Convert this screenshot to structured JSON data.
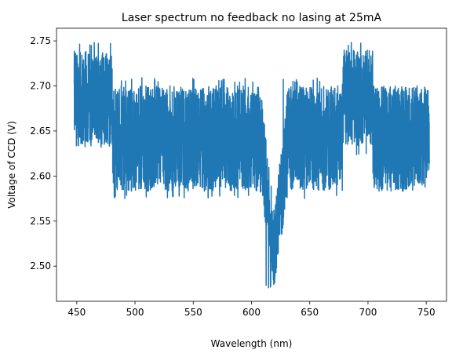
{
  "chart_data": {
    "type": "line",
    "title": "Laser spectrum no feedback no lasing at 25mA",
    "xlabel": "Wavelength (nm)",
    "ylabel": "Voltage of CCD (V)",
    "xlim": [
      432.6,
      767.4
    ],
    "ylim": [
      2.461,
      2.764
    ],
    "xticks": [
      450,
      500,
      550,
      600,
      650,
      700,
      750
    ],
    "xtick_labels": [
      "450",
      "500",
      "550",
      "600",
      "650",
      "700",
      "750"
    ],
    "yticks": [
      2.5,
      2.55,
      2.6,
      2.65,
      2.7,
      2.75
    ],
    "ytick_labels": [
      "2.50",
      "2.55",
      "2.60",
      "2.65",
      "2.70",
      "2.75"
    ],
    "grid": false,
    "series": [
      {
        "color": "#1f77b4",
        "x_range": [
          447.8,
          752.6
        ],
        "description_segments": [
          {
            "x_from": 447.8,
            "x_to": 480.5,
            "y_low": 2.633,
            "y_high": 2.739,
            "y_min_spike": 2.632,
            "y_max_spike": 2.75
          },
          {
            "x_from": 480.5,
            "x_to": 605.0,
            "y_low": 2.583,
            "y_high": 2.7,
            "y_min_spike": 2.575,
            "y_max_spike": 2.71
          },
          {
            "x_from": 605.0,
            "x_to": 612.0,
            "y_low": 2.56,
            "y_high": 2.69
          },
          {
            "x_from": 612.0,
            "x_to": 620.0,
            "y_low": 2.48,
            "y_high": 2.62,
            "y_min_spike": 2.475
          },
          {
            "x_from": 620.0,
            "x_to": 626.0,
            "y_low": 2.54,
            "y_high": 2.68
          },
          {
            "x_from": 626.0,
            "x_to": 678.0,
            "y_low": 2.583,
            "y_high": 2.7,
            "y_min_spike": 2.575,
            "y_max_spike": 2.71
          },
          {
            "x_from": 678.0,
            "x_to": 704.0,
            "y_low": 2.633,
            "y_high": 2.74,
            "y_min_spike": 2.622,
            "y_max_spike": 2.75
          },
          {
            "x_from": 704.0,
            "x_to": 752.6,
            "y_low": 2.583,
            "y_high": 2.7,
            "y_min_spike": 2.583,
            "y_max_spike": 2.7
          }
        ]
      }
    ]
  }
}
